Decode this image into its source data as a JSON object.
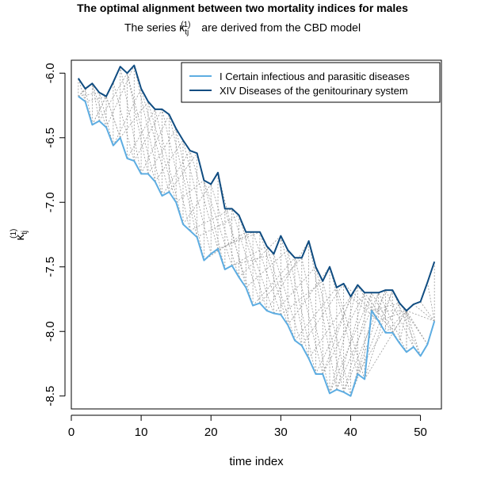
{
  "chart_data": {
    "type": "line",
    "title": "The optimal alignment between two mortality indices for males",
    "subtitle": {
      "prefix": "The series κ",
      "subscript": "tj",
      "superscript": "(1)",
      "suffix": " are derived from the CBD model"
    },
    "xlabel": "time index",
    "ylabel": {
      "base": "κ",
      "subscript": "tj",
      "superscript": "(1)"
    },
    "xlim": [
      0,
      53
    ],
    "ylim": [
      -8.6,
      -5.9
    ],
    "x_ticks": [
      0,
      10,
      20,
      30,
      40,
      50
    ],
    "y_ticks": [
      -6.0,
      -6.5,
      -7.0,
      -7.5,
      -8.0,
      -8.5
    ],
    "y_tick_labels": [
      "-6.0",
      "-6.5",
      "-7.0",
      "-7.5",
      "-8.0",
      "-8.5"
    ],
    "grid": false,
    "legend_position": "top-right",
    "x": [
      1,
      2,
      3,
      4,
      5,
      6,
      7,
      8,
      9,
      10,
      11,
      12,
      13,
      14,
      15,
      16,
      17,
      18,
      19,
      20,
      21,
      22,
      23,
      24,
      25,
      26,
      27,
      28,
      29,
      30,
      31,
      32,
      33,
      34,
      35,
      36,
      37,
      38,
      39,
      40,
      41,
      42,
      43,
      44,
      45,
      46,
      47,
      48,
      49,
      50,
      51,
      52
    ],
    "series": [
      {
        "name": "I Certain infectious and parasitic diseases",
        "color": "#5DADE2",
        "values": [
          -6.18,
          -6.22,
          -6.4,
          -6.37,
          -6.42,
          -6.56,
          -6.5,
          -6.66,
          -6.68,
          -6.78,
          -6.78,
          -6.84,
          -6.95,
          -6.92,
          -7.0,
          -7.17,
          -7.22,
          -7.27,
          -7.45,
          -7.4,
          -7.36,
          -7.52,
          -7.49,
          -7.58,
          -7.66,
          -7.8,
          -7.78,
          -7.84,
          -7.86,
          -7.87,
          -7.95,
          -8.07,
          -8.11,
          -8.21,
          -8.33,
          -8.33,
          -8.48,
          -8.45,
          -8.47,
          -8.5,
          -8.33,
          -8.37,
          -7.84,
          -7.92,
          -8.01,
          -8.01,
          -8.09,
          -8.16,
          -8.12,
          -8.19,
          -8.1,
          -7.92
        ]
      },
      {
        "name": "XIV Diseases of the genitourinary system",
        "color": "#0F4C81",
        "values": [
          -6.04,
          -6.12,
          -6.08,
          -6.15,
          -6.18,
          -6.07,
          -5.95,
          -6.0,
          -5.94,
          -6.12,
          -6.22,
          -6.28,
          -6.28,
          -6.32,
          -6.43,
          -6.52,
          -6.6,
          -6.62,
          -6.83,
          -6.86,
          -6.77,
          -7.05,
          -7.05,
          -7.1,
          -7.23,
          -7.23,
          -7.23,
          -7.34,
          -7.4,
          -7.26,
          -7.37,
          -7.43,
          -7.43,
          -7.3,
          -7.5,
          -7.61,
          -7.5,
          -7.66,
          -7.63,
          -7.73,
          -7.64,
          -7.7,
          -7.7,
          -7.7,
          -7.68,
          -7.68,
          -7.78,
          -7.84,
          -7.79,
          -7.77,
          -7.62,
          -7.46
        ]
      }
    ],
    "alignment": [
      [
        1,
        1
      ],
      [
        2,
        1
      ],
      [
        3,
        2
      ],
      [
        4,
        3
      ],
      [
        5,
        3
      ],
      [
        6,
        4
      ],
      [
        7,
        5
      ],
      [
        8,
        5
      ],
      [
        9,
        6
      ],
      [
        10,
        7
      ],
      [
        11,
        8
      ],
      [
        12,
        8
      ],
      [
        13,
        9
      ],
      [
        14,
        10
      ],
      [
        15,
        11
      ],
      [
        16,
        12
      ],
      [
        17,
        13
      ],
      [
        18,
        14
      ],
      [
        19,
        15
      ],
      [
        20,
        16
      ],
      [
        21,
        17
      ],
      [
        22,
        18
      ],
      [
        23,
        19
      ],
      [
        24,
        20
      ],
      [
        25,
        21
      ],
      [
        26,
        22
      ],
      [
        27,
        23
      ],
      [
        28,
        24
      ],
      [
        29,
        25
      ],
      [
        30,
        26
      ],
      [
        31,
        27
      ],
      [
        32,
        28
      ],
      [
        33,
        29
      ],
      [
        34,
        30
      ],
      [
        35,
        31
      ],
      [
        36,
        32
      ],
      [
        37,
        33
      ],
      [
        38,
        34
      ],
      [
        39,
        35
      ],
      [
        40,
        36
      ],
      [
        41,
        37
      ],
      [
        42,
        38
      ],
      [
        43,
        39
      ],
      [
        44,
        40
      ],
      [
        45,
        41
      ],
      [
        46,
        42
      ],
      [
        47,
        43
      ],
      [
        48,
        44
      ],
      [
        49,
        45
      ],
      [
        50,
        46
      ],
      [
        51,
        47
      ],
      [
        52,
        48
      ],
      [
        2,
        2
      ],
      [
        3,
        3
      ],
      [
        4,
        4
      ],
      [
        5,
        5
      ],
      [
        6,
        6
      ],
      [
        7,
        7
      ],
      [
        8,
        8
      ],
      [
        9,
        9
      ],
      [
        10,
        10
      ],
      [
        11,
        11
      ],
      [
        12,
        12
      ],
      [
        13,
        13
      ],
      [
        14,
        14
      ],
      [
        15,
        15
      ],
      [
        16,
        16
      ],
      [
        17,
        17
      ],
      [
        18,
        18
      ],
      [
        19,
        19
      ],
      [
        20,
        20
      ],
      [
        21,
        21
      ],
      [
        22,
        22
      ],
      [
        23,
        23
      ],
      [
        24,
        24
      ],
      [
        25,
        25
      ],
      [
        26,
        26
      ],
      [
        27,
        27
      ],
      [
        28,
        28
      ],
      [
        29,
        29
      ],
      [
        30,
        30
      ],
      [
        31,
        31
      ],
      [
        32,
        32
      ],
      [
        33,
        33
      ],
      [
        34,
        34
      ],
      [
        35,
        35
      ],
      [
        36,
        36
      ],
      [
        37,
        37
      ],
      [
        38,
        38
      ],
      [
        39,
        39
      ],
      [
        40,
        40
      ],
      [
        41,
        41
      ],
      [
        42,
        42
      ],
      [
        43,
        43
      ],
      [
        44,
        44
      ],
      [
        45,
        45
      ],
      [
        46,
        46
      ],
      [
        47,
        47
      ],
      [
        48,
        48
      ],
      [
        1,
        2
      ],
      [
        1,
        3
      ],
      [
        1,
        4
      ],
      [
        2,
        5
      ],
      [
        3,
        6
      ],
      [
        3,
        7
      ],
      [
        4,
        8
      ],
      [
        5,
        9
      ],
      [
        6,
        10
      ],
      [
        7,
        11
      ],
      [
        8,
        12
      ],
      [
        9,
        13
      ],
      [
        10,
        14
      ],
      [
        11,
        15
      ],
      [
        12,
        16
      ],
      [
        13,
        17
      ],
      [
        14,
        18
      ],
      [
        15,
        19
      ],
      [
        16,
        20
      ],
      [
        43,
        48
      ],
      [
        44,
        48
      ],
      [
        45,
        48
      ],
      [
        46,
        48
      ],
      [
        47,
        48
      ],
      [
        48,
        48
      ],
      [
        49,
        48
      ],
      [
        50,
        48
      ],
      [
        51,
        48
      ],
      [
        52,
        49
      ],
      [
        52,
        50
      ],
      [
        52,
        51
      ],
      [
        52,
        52
      ],
      [
        36,
        40
      ],
      [
        37,
        41
      ],
      [
        38,
        42
      ],
      [
        39,
        43
      ],
      [
        40,
        44
      ],
      [
        41,
        45
      ],
      [
        42,
        46
      ],
      [
        43,
        47
      ],
      [
        40,
        46
      ],
      [
        41,
        47
      ],
      [
        42,
        48
      ],
      [
        38,
        44
      ],
      [
        39,
        45
      ],
      [
        37,
        43
      ],
      [
        36,
        42
      ],
      [
        35,
        41
      ],
      [
        34,
        40
      ],
      [
        33,
        39
      ],
      [
        32,
        38
      ],
      [
        31,
        37
      ],
      [
        30,
        36
      ],
      [
        29,
        35
      ],
      [
        28,
        34
      ],
      [
        27,
        33
      ],
      [
        26,
        32
      ],
      [
        25,
        31
      ],
      [
        24,
        30
      ],
      [
        23,
        29
      ],
      [
        22,
        28
      ],
      [
        21,
        27
      ],
      [
        20,
        26
      ],
      [
        19,
        25
      ],
      [
        18,
        24
      ],
      [
        17,
        23
      ]
    ]
  }
}
